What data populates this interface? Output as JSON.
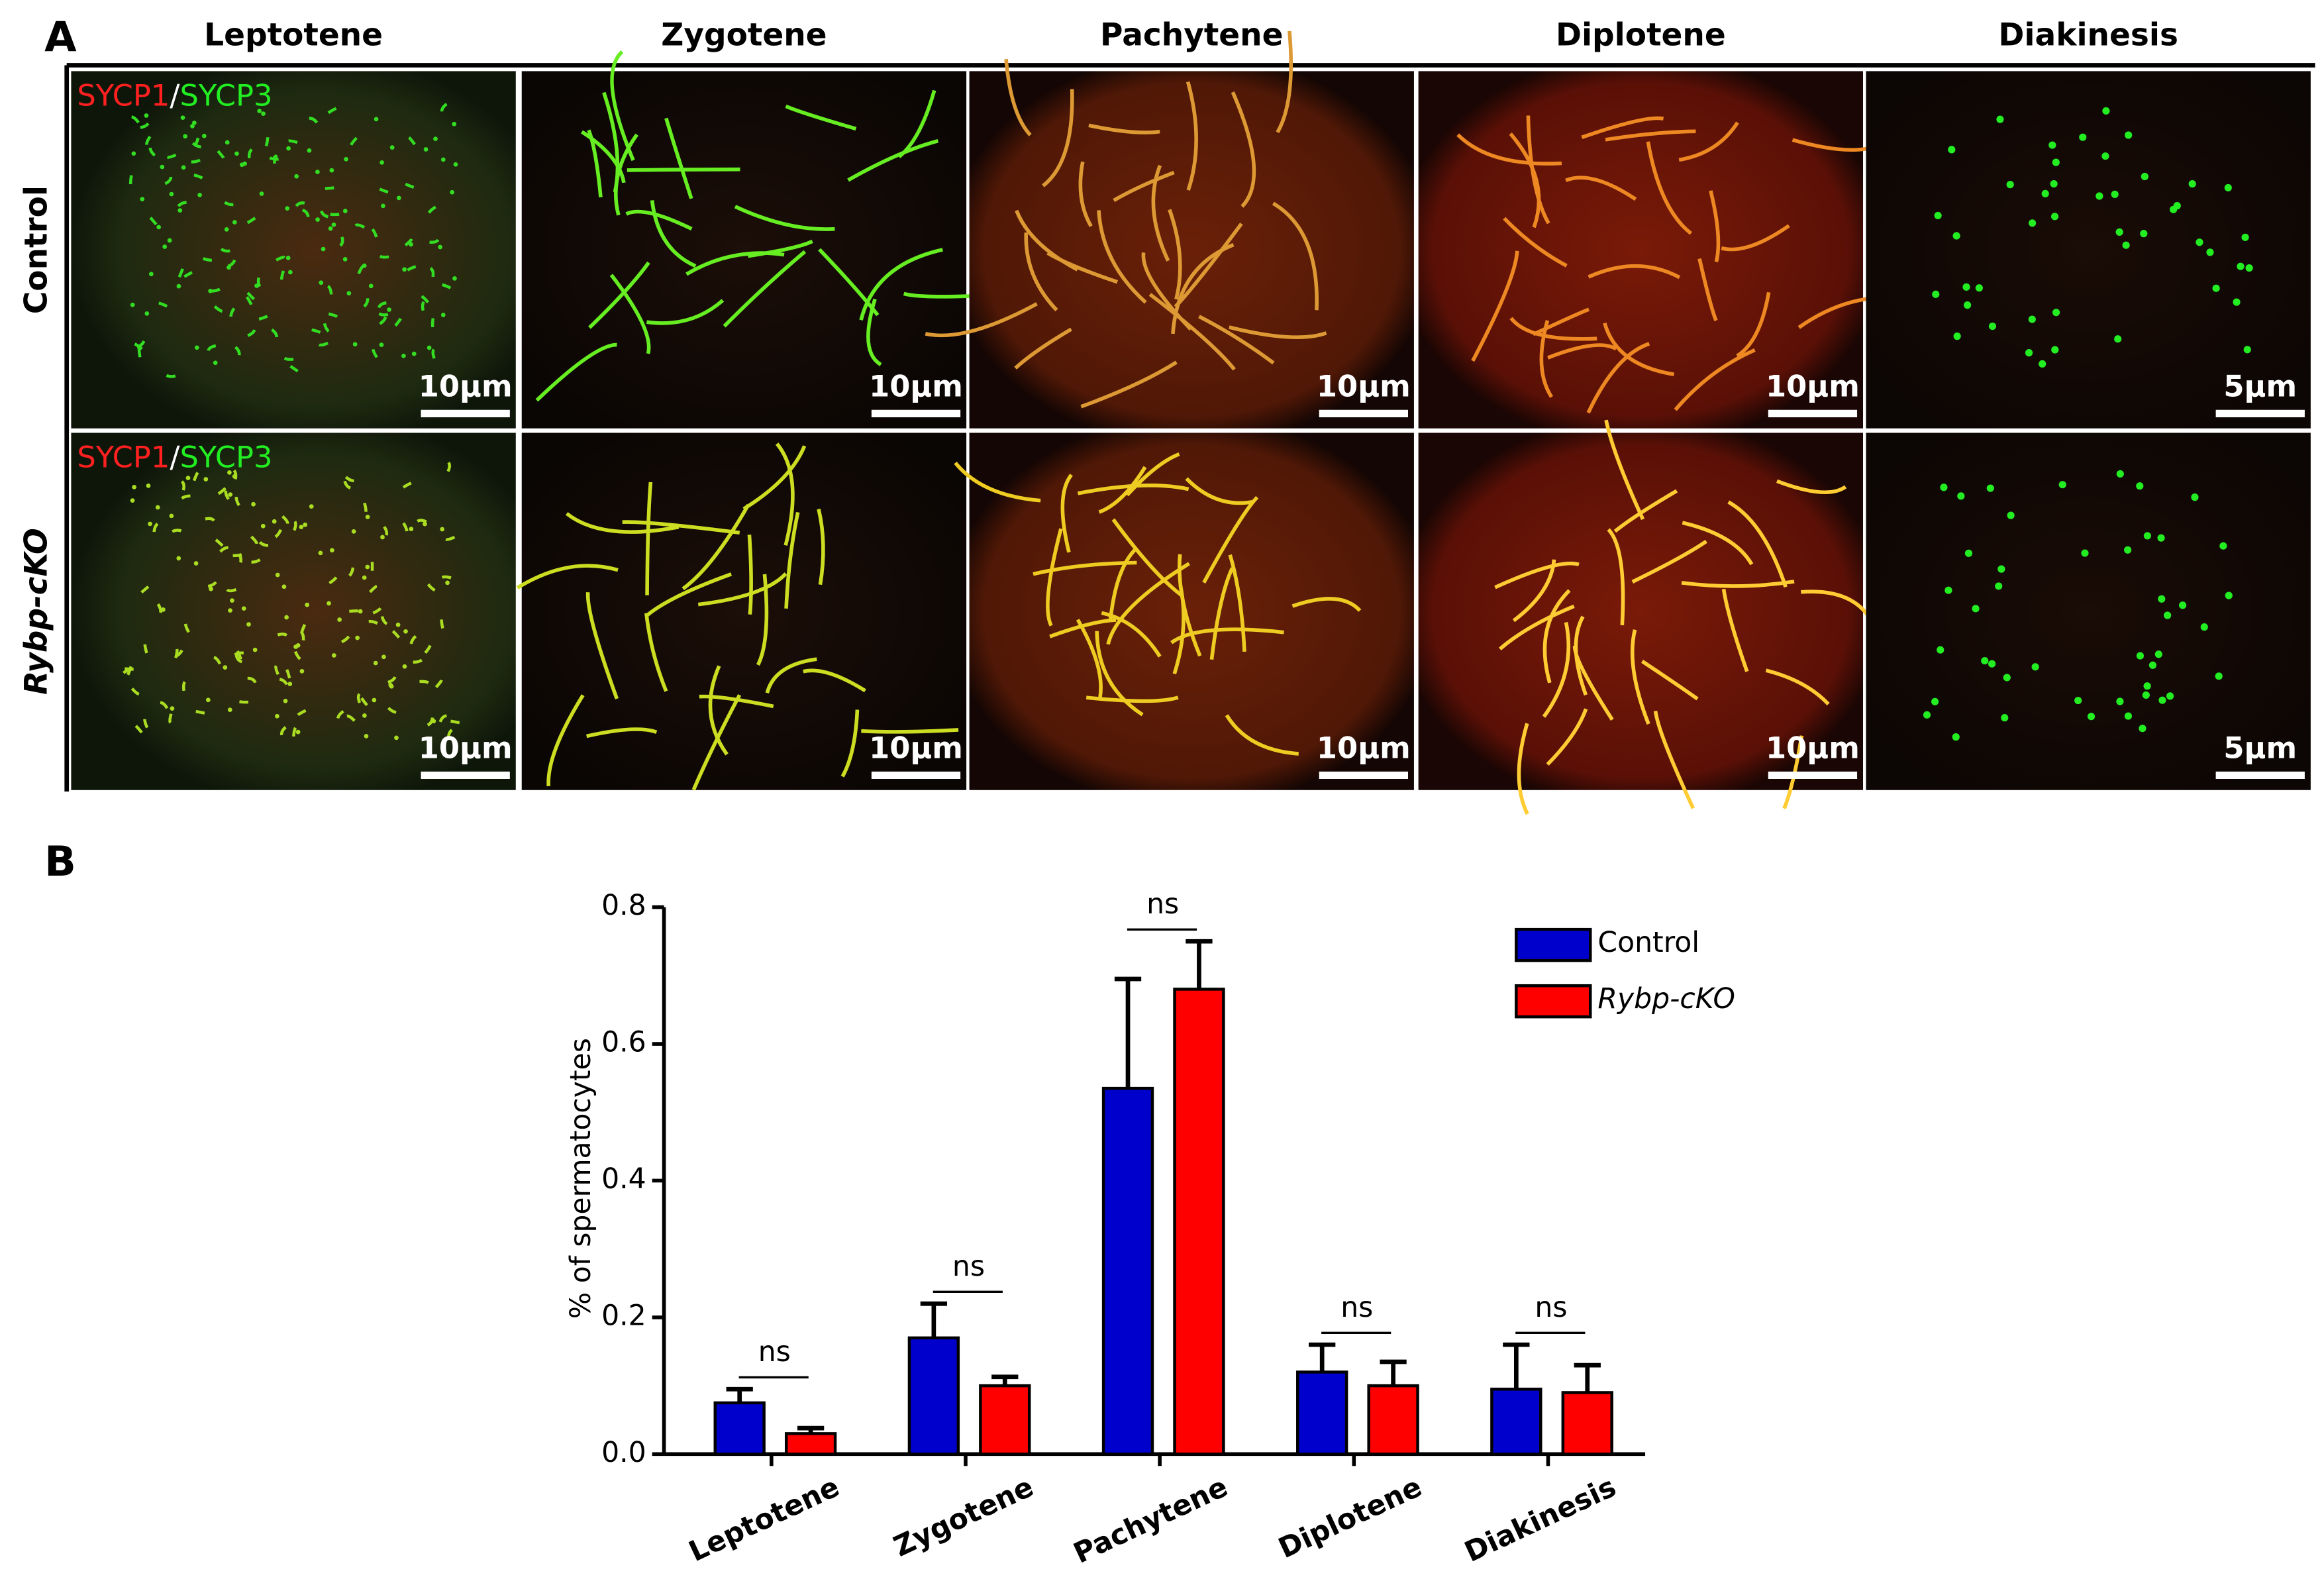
{
  "panel_a": {
    "label": "A",
    "columns": [
      "Leptotene",
      "Zygotene",
      "Pachytene",
      "Diplotene",
      "Diakinesis"
    ],
    "rows": [
      "Control",
      "Rybp-cKO"
    ],
    "stain_labels": [
      "SYCP1",
      "/",
      "SYCP3"
    ],
    "scale_bars": [
      [
        "10µm",
        "10µm",
        "10µm",
        "10µm",
        "5µm"
      ],
      [
        "10µm",
        "10µm",
        "10µm",
        "10µm",
        "5µm"
      ]
    ]
  },
  "chart_data": {
    "type": "bar",
    "panel_label": "B",
    "y_label": "% of spermatocytes",
    "categories": [
      "Leptotene",
      "Zygotene",
      "Pachytene",
      "Diplotene",
      "Diakinesis"
    ],
    "series": [
      {
        "name": "Control",
        "color": "#0000cc",
        "values": [
          0.075,
          0.17,
          0.535,
          0.12,
          0.095
        ],
        "errors": [
          0.02,
          0.05,
          0.16,
          0.04,
          0.065
        ]
      },
      {
        "name": "Rybp-cKO",
        "color": "#ff0000",
        "values": [
          0.03,
          0.1,
          0.68,
          0.1,
          0.09
        ],
        "errors": [
          0.008,
          0.013,
          0.07,
          0.035,
          0.04
        ]
      }
    ],
    "annotations": [
      "ns",
      "ns",
      "ns",
      "ns",
      "ns"
    ],
    "ylim": [
      0,
      0.8
    ],
    "yticks": [
      {
        "value": 0,
        "label": "0.0"
      },
      0.2,
      0.4,
      0.6,
      0.8
    ],
    "legend": "upper right"
  }
}
